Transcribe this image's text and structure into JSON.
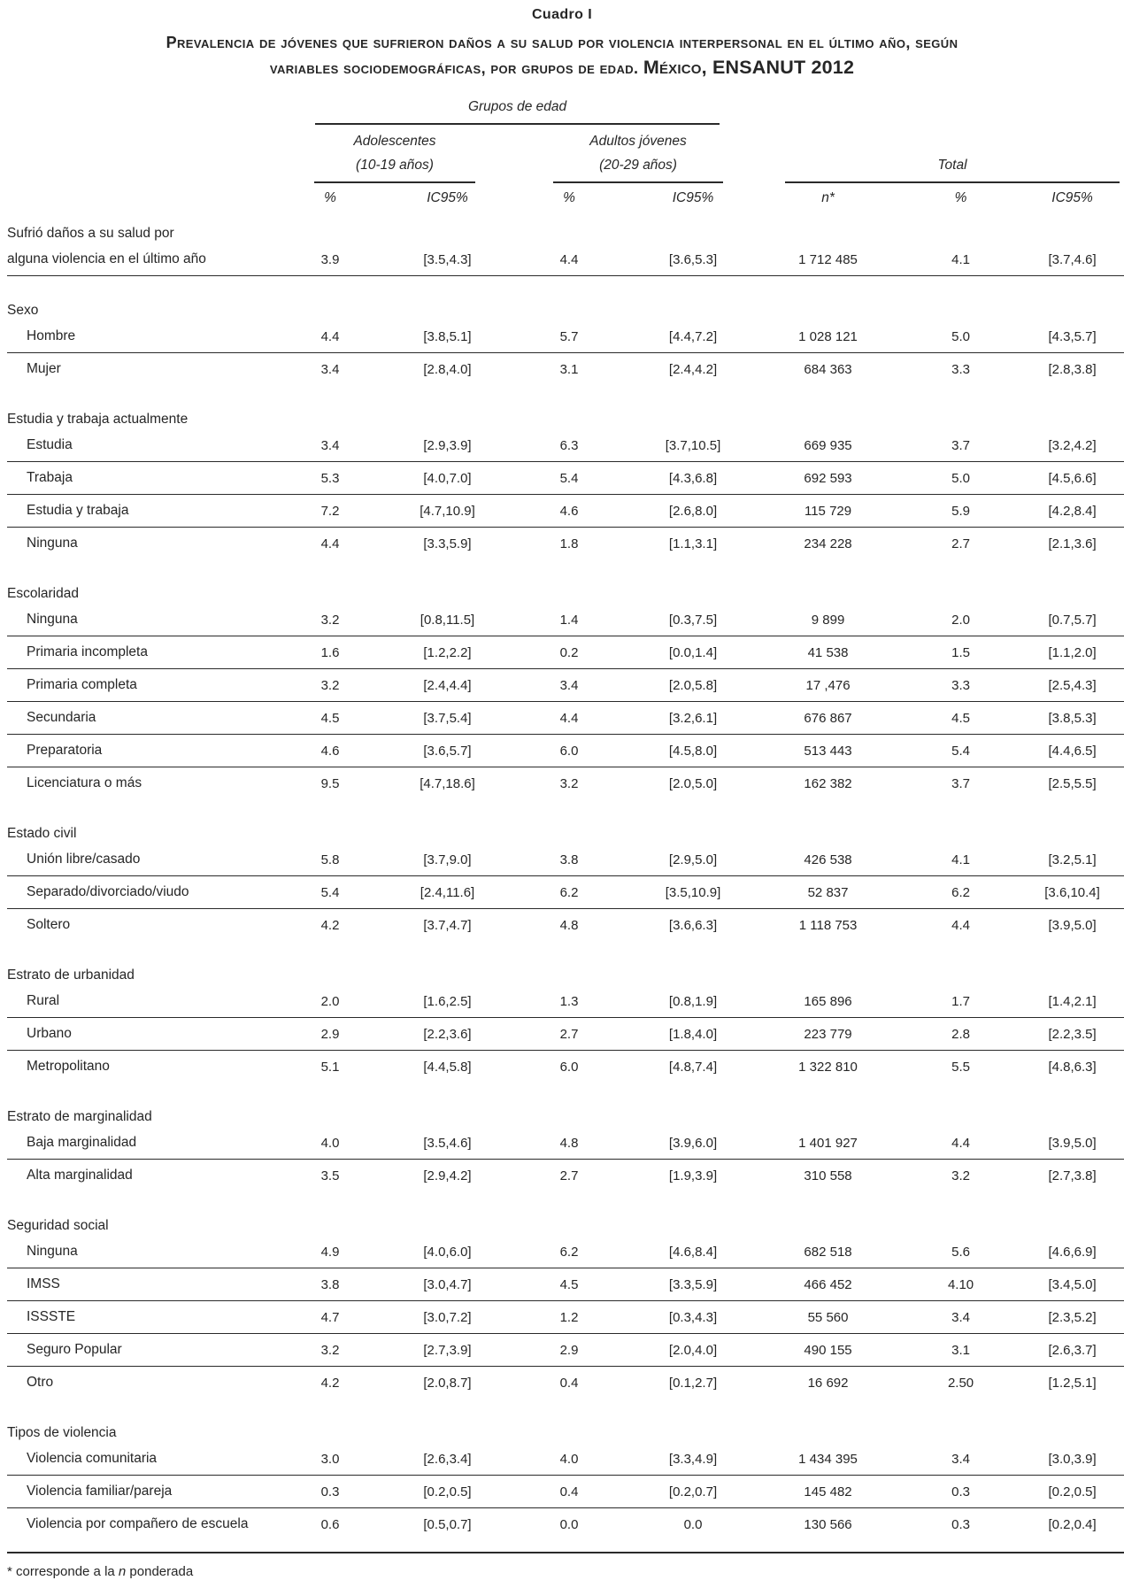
{
  "title": "Cuadro I",
  "subtitle_line1": "Prevalencia de jóvenes que sufrieron daños a su salud por violencia interpersonal en el último año, según",
  "subtitle_line2": "variables sociodemográficas, por grupos de edad. ",
  "subtitle_highlight": "México, ENSANUT 2012",
  "header": {
    "group_title": "Grupos de edad",
    "adolescentes": {
      "label": "Adolescentes",
      "sublabel": "(10-19 años)"
    },
    "adultos": {
      "label": "Adultos jóvenes",
      "sublabel": "(20-29 años)"
    },
    "total": {
      "label": "Total"
    },
    "columns": [
      "%",
      "IC95%",
      "%",
      "IC95%",
      "n*",
      "%",
      "IC95%"
    ]
  },
  "table": {
    "sections": [
      {
        "header": "Sufrió daños a su salud por",
        "rows": [
          {
            "label": "alguna violencia en el último año",
            "indent": false,
            "rule": true,
            "values": [
              "3.9",
              "[3.5,4.3]",
              "4.4",
              "[3.6,5.3]",
              "1 712 485",
              "4.1",
              "[3.7,4.6]"
            ]
          }
        ]
      },
      {
        "header": "Sexo",
        "rows": [
          {
            "label": "Hombre",
            "rule": true,
            "values": [
              "4.4",
              "[3.8,5.1]",
              "5.7",
              "[4.4,7.2]",
              "1 028 121",
              "5.0",
              "[4.3,5.7]"
            ]
          },
          {
            "label": "Mujer",
            "rule": false,
            "values": [
              "3.4",
              "[2.8,4.0]",
              "3.1",
              "[2.4,4.2]",
              "684 363",
              "3.3",
              "[2.8,3.8]"
            ]
          }
        ]
      },
      {
        "header": "Estudia y trabaja actualmente",
        "rows": [
          {
            "label": "Estudia",
            "rule": true,
            "values": [
              "3.4",
              "[2.9,3.9]",
              "6.3",
              "[3.7,10.5]",
              "669 935",
              "3.7",
              "[3.2,4.2]"
            ]
          },
          {
            "label": "Trabaja",
            "rule": true,
            "values": [
              "5.3",
              "[4.0,7.0]",
              "5.4",
              "[4.3,6.8]",
              "692 593",
              "5.0",
              "[4.5,6.6]"
            ]
          },
          {
            "label": "Estudia y trabaja",
            "rule": true,
            "values": [
              "7.2",
              "[4.7,10.9]",
              "4.6",
              "[2.6,8.0]",
              "115 729",
              "5.9",
              "[4.2,8.4]"
            ]
          },
          {
            "label": "Ninguna",
            "rule": false,
            "values": [
              "4.4",
              "[3.3,5.9]",
              "1.8",
              "[1.1,3.1]",
              "234 228",
              "2.7",
              "[2.1,3.6]"
            ]
          }
        ]
      },
      {
        "header": "Escolaridad",
        "rows": [
          {
            "label": "Ninguna",
            "rule": true,
            "values": [
              "3.2",
              "[0.8,11.5]",
              "1.4",
              "[0.3,7.5]",
              "9 899",
              "2.0",
              "[0.7,5.7]"
            ]
          },
          {
            "label": "Primaria incompleta",
            "rule": true,
            "values": [
              "1.6",
              "[1.2,2.2]",
              "0.2",
              "[0.0,1.4]",
              "41 538",
              "1.5",
              "[1.1,2.0]"
            ]
          },
          {
            "label": "Primaria completa",
            "rule": true,
            "values": [
              "3.2",
              "[2.4,4.4]",
              "3.4",
              "[2.0,5.8]",
              "17 ,476",
              "3.3",
              "[2.5,4.3]"
            ]
          },
          {
            "label": "Secundaria",
            "rule": true,
            "values": [
              "4.5",
              "[3.7,5.4]",
              "4.4",
              "[3.2,6.1]",
              "676 867",
              "4.5",
              "[3.8,5.3]"
            ]
          },
          {
            "label": "Preparatoria",
            "rule": true,
            "values": [
              "4.6",
              "[3.6,5.7]",
              "6.0",
              "[4.5,8.0]",
              "513 443",
              "5.4",
              "[4.4,6.5]"
            ]
          },
          {
            "label": "Licenciatura o más",
            "rule": false,
            "values": [
              "9.5",
              "[4.7,18.6]",
              "3.2",
              "[2.0,5.0]",
              "162 382",
              "3.7",
              "[2.5,5.5]"
            ]
          }
        ]
      },
      {
        "header": "Estado civil",
        "rows": [
          {
            "label": "Unión libre/casado",
            "rule": true,
            "values": [
              "5.8",
              "[3.7,9.0]",
              "3.8",
              "[2.9,5.0]",
              "426 538",
              "4.1",
              "[3.2,5.1]"
            ]
          },
          {
            "label": "Separado/divorciado/viudo",
            "rule": true,
            "values": [
              "5.4",
              "[2.4,11.6]",
              "6.2",
              "[3.5,10.9]",
              "52 837",
              "6.2",
              "[3.6,10.4]"
            ]
          },
          {
            "label": "Soltero",
            "rule": false,
            "values": [
              "4.2",
              "[3.7,4.7]",
              "4.8",
              "[3.6,6.3]",
              "1 118 753",
              "4.4",
              "[3.9,5.0]"
            ]
          }
        ]
      },
      {
        "header": "Estrato de urbanidad",
        "rows": [
          {
            "label": "Rural",
            "rule": true,
            "values": [
              "2.0",
              "[1.6,2.5]",
              "1.3",
              "[0.8,1.9]",
              "165 896",
              "1.7",
              "[1.4,2.1]"
            ]
          },
          {
            "label": "Urbano",
            "rule": true,
            "values": [
              "2.9",
              "[2.2,3.6]",
              "2.7",
              "[1.8,4.0]",
              "223 779",
              "2.8",
              "[2.2,3.5]"
            ]
          },
          {
            "label": "Metropolitano",
            "rule": false,
            "values": [
              "5.1",
              "[4.4,5.8]",
              "6.0",
              "[4.8,7.4]",
              "1 322 810",
              "5.5",
              "[4.8,6.3]"
            ]
          }
        ]
      },
      {
        "header": "Estrato de marginalidad",
        "rows": [
          {
            "label": "Baja marginalidad",
            "rule": true,
            "values": [
              "4.0",
              "[3.5,4.6]",
              "4.8",
              "[3.9,6.0]",
              "1 401 927",
              "4.4",
              "[3.9,5.0]"
            ]
          },
          {
            "label": "Alta marginalidad",
            "rule": false,
            "values": [
              "3.5",
              "[2.9,4.2]",
              "2.7",
              "[1.9,3.9]",
              "310 558",
              "3.2",
              "[2.7,3.8]"
            ]
          }
        ]
      },
      {
        "header": "Seguridad social",
        "rows": [
          {
            "label": "Ninguna",
            "rule": true,
            "values": [
              "4.9",
              "[4.0,6.0]",
              "6.2",
              "[4.6,8.4]",
              "682 518",
              "5.6",
              "[4.6,6.9]"
            ]
          },
          {
            "label": "IMSS",
            "rule": true,
            "values": [
              "3.8",
              "[3.0,4.7]",
              "4.5",
              "[3.3,5.9]",
              "466 452",
              "4.10",
              "[3.4,5.0]"
            ]
          },
          {
            "label": "ISSSTE",
            "rule": true,
            "values": [
              "4.7",
              "[3.0,7.2]",
              "1.2",
              "[0.3,4.3]",
              "55 560",
              "3.4",
              "[2.3,5.2]"
            ]
          },
          {
            "label": "Seguro Popular",
            "rule": true,
            "values": [
              "3.2",
              "[2.7,3.9]",
              "2.9",
              "[2.0,4.0]",
              "490 155",
              "3.1",
              "[2.6,3.7]"
            ]
          },
          {
            "label": "Otro",
            "rule": false,
            "values": [
              "4.2",
              "[2.0,8.7]",
              "0.4",
              "[0.1,2.7]",
              "16 692",
              "2.50",
              "[1.2,5.1]"
            ]
          }
        ]
      },
      {
        "header": "Tipos de violencia",
        "rows": [
          {
            "label": "Violencia comunitaria",
            "rule": true,
            "values": [
              "3.0",
              "[2.6,3.4]",
              "4.0",
              "[3.3,4.9]",
              "1 434 395",
              "3.4",
              "[3.0,3.9]"
            ]
          },
          {
            "label": "Violencia familiar/pareja",
            "rule": true,
            "values": [
              "0.3",
              "[0.2,0.5]",
              "0.4",
              "[0.2,0.7]",
              "145 482",
              "0.3",
              "[0.2,0.5]"
            ]
          },
          {
            "label": "Violencia por compañero de escuela",
            "rule": false,
            "values": [
              "0.6",
              "[0.5,0.7]",
              "0.0",
              "0.0",
              "130 566",
              "0.3",
              "[0.2,0.4]"
            ]
          }
        ]
      }
    ]
  },
  "footnote": {
    "prefix": "* corresponde a la ",
    "italic": "n",
    "suffix": " ponderada"
  }
}
